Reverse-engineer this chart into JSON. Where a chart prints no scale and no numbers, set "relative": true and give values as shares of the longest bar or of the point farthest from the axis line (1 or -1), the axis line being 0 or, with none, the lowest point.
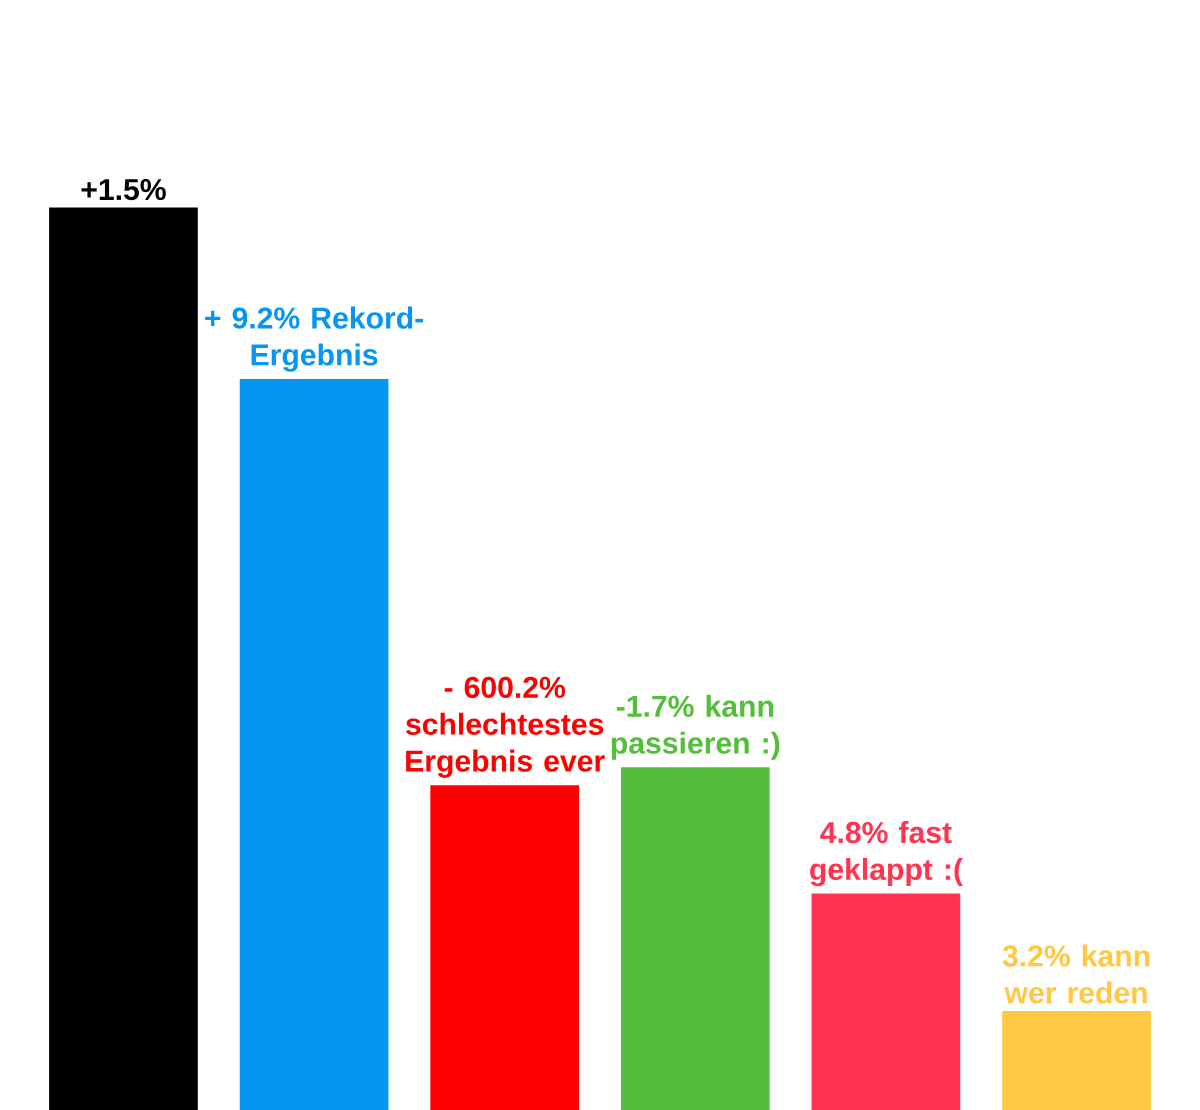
{
  "chart_data": {
    "type": "bar",
    "relative": true,
    "categories": [
      null,
      null,
      null,
      null,
      null,
      null
    ],
    "values": [
      1,
      0.81,
      0.36,
      0.38,
      0.24,
      0.11
    ],
    "colors": [
      "#000000",
      "#0696f0",
      "#fe0000",
      "#52be3a",
      "#fe3451",
      "#fec843"
    ],
    "annotations": [
      "+1.5%",
      "+ 9.2% Rekord-Ergebnis",
      "- 600.2% schlechtestes Ergebnis ever",
      "-1.7% kann passieren :)",
      "4.8% fast geklappt :(",
      "3.2% kann wer reden"
    ]
  }
}
